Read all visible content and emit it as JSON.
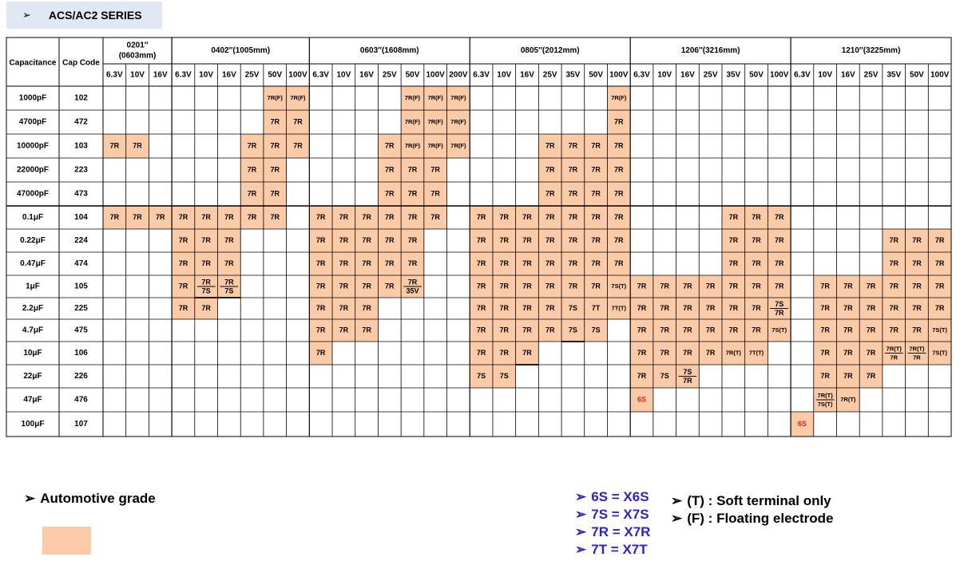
{
  "title": "ACS/AC2 SERIES",
  "title_arrow": "➢",
  "headers": {
    "capacitance": "Capacitance",
    "cap_code": "Cap Code",
    "sizes": [
      {
        "name": "0201″\n(0603mm)",
        "voltages": [
          "6.3V",
          "10V",
          "16V"
        ]
      },
      {
        "name": "0402″(1005mm)",
        "voltages": [
          "6.3V",
          "10V",
          "16V",
          "25V",
          "50V",
          "100V"
        ]
      },
      {
        "name": "0603″(1608mm)",
        "voltages": [
          "6.3V",
          "10V",
          "16V",
          "25V",
          "50V",
          "100V",
          "200V"
        ]
      },
      {
        "name": "0805″(2012mm)",
        "voltages": [
          "6.3V",
          "10V",
          "16V",
          "25V",
          "35V",
          "50V",
          "100V"
        ]
      },
      {
        "name": "1206″(3216mm)",
        "voltages": [
          "6.3V",
          "10V",
          "16V",
          "25V",
          "35V",
          "50V",
          "100V"
        ]
      },
      {
        "name": "1210″(3225mm)",
        "voltages": [
          "6.3V",
          "10V",
          "16V",
          "25V",
          "35V",
          "50V",
          "100V"
        ]
      }
    ]
  },
  "rows": [
    {
      "cap": "1000pF",
      "code": "102",
      "cells": [
        "",
        "",
        "",
        "",
        "",
        "",
        "",
        "7R(F)",
        "7R(F)",
        "",
        "",
        "",
        "",
        "7R(F)",
        "7R(F)",
        "7R(F)",
        "",
        "",
        "",
        "",
        "",
        "",
        "7R(F)",
        "",
        "",
        "",
        "",
        "",
        "",
        "",
        "",
        "",
        "",
        "",
        "",
        "",
        ""
      ]
    },
    {
      "cap": "4700pF",
      "code": "472",
      "cells": [
        "",
        "",
        "",
        "",
        "",
        "",
        "",
        "7R",
        "7R",
        "",
        "",
        "",
        "",
        "7R(F)",
        "7R(F)",
        "7R(F)",
        "",
        "",
        "",
        "",
        "",
        "",
        "7R",
        "",
        "",
        "",
        "",
        "",
        "",
        "",
        "",
        "",
        "",
        "",
        "",
        "",
        ""
      ]
    },
    {
      "cap": "10000pF",
      "code": "103",
      "cells": [
        "7R",
        "7R",
        "",
        "",
        "",
        "",
        "7R",
        "7R",
        "7R",
        "",
        "",
        "",
        "7R",
        "7R(F)",
        "7R(F)",
        "7R(F)",
        "",
        "",
        "",
        "7R",
        "7R",
        "7R",
        "7R",
        "",
        "",
        "",
        "",
        "",
        "",
        "",
        "",
        "",
        "",
        "",
        "",
        "",
        ""
      ]
    },
    {
      "cap": "22000pF",
      "code": "223",
      "cells": [
        "",
        "",
        "",
        "",
        "",
        "",
        "7R",
        "7R",
        "",
        "",
        "",
        "",
        "7R",
        "7R",
        "7R",
        "",
        "",
        "",
        "",
        "7R",
        "7R",
        "7R",
        "7R",
        "",
        "",
        "",
        "",
        "",
        "",
        "",
        "",
        "",
        "",
        "",
        "",
        "",
        ""
      ]
    },
    {
      "cap": "47000pF",
      "code": "473",
      "cells": [
        "",
        "",
        "",
        "",
        "",
        "",
        "7R",
        "7R",
        "",
        "",
        "",
        "",
        "7R",
        "7R",
        "7R",
        "",
        "",
        "",
        "",
        "7R",
        "7R",
        "7R",
        "7R",
        "",
        "",
        "",
        "",
        "",
        "",
        "",
        "",
        "",
        "",
        "",
        "",
        "",
        ""
      ]
    },
    {
      "cap": "0.1μF",
      "code": "104",
      "cells": [
        "7R",
        "7R",
        "7R",
        "7R",
        "7R",
        "7R",
        "7R",
        "7R",
        "",
        "7R",
        "7R",
        "7R",
        "7R",
        "7R",
        "7R",
        "",
        "7R",
        "7R",
        "7R",
        "7R",
        "7R",
        "7R",
        "7R",
        "",
        "",
        "",
        "",
        "7R",
        "7R",
        "7R",
        "",
        "",
        "",
        "",
        "",
        "",
        ""
      ]
    },
    {
      "cap": "0.22μF",
      "code": "224",
      "cells": [
        "",
        "",
        "",
        "7R",
        "7R",
        "7R",
        "",
        "",
        "",
        "7R",
        "7R",
        "7R",
        "7R",
        "7R",
        "",
        "",
        "7R",
        "7R",
        "7R",
        "7R",
        "7R",
        "7R",
        "7R",
        "",
        "",
        "",
        "",
        "7R",
        "7R",
        "7R",
        "",
        "",
        "",
        "",
        "7R",
        "7R",
        "7R"
      ]
    },
    {
      "cap": "0.47μF",
      "code": "474",
      "cells": [
        "",
        "",
        "",
        "7R",
        "7R",
        "7R",
        "",
        "",
        "",
        "7R",
        "7R",
        "7R",
        "7R",
        "7R",
        "",
        "",
        "7R",
        "7R",
        "7R",
        "7R",
        "7R",
        "7R",
        "7R",
        "",
        "",
        "",
        "",
        "7R",
        "7R",
        "7R",
        "",
        "",
        "",
        "",
        "7R",
        "7R",
        "7R"
      ]
    },
    {
      "cap": "1μF",
      "code": "105",
      "cells": [
        "",
        "",
        "",
        "7R",
        "7R/7S",
        "7R/7S",
        "",
        "",
        "",
        "7R",
        "7R",
        "7R",
        "7R",
        "7R/35V",
        "",
        "",
        "7R",
        "7R",
        "7R",
        "7R",
        "7R",
        "7R",
        "7S(T)",
        "7R",
        "7R",
        "7R",
        "7R",
        "7R",
        "7R",
        "7R",
        "",
        "7R",
        "7R",
        "7R",
        "7R",
        "7R",
        "7R"
      ]
    },
    {
      "cap": "2.2μF",
      "code": "225",
      "cells": [
        "",
        "",
        "",
        "7R",
        "7R",
        "",
        "",
        "",
        "",
        "7R",
        "7R",
        "7R",
        "",
        "",
        "",
        "",
        "7R",
        "7R",
        "7R",
        "7R",
        "7S",
        "7T",
        "7T(T)",
        "7R",
        "7R",
        "7R",
        "7R",
        "7R",
        "7R",
        "7S/7R",
        "",
        "7R",
        "7R",
        "7R",
        "7R",
        "7R",
        "7R"
      ]
    },
    {
      "cap": "4.7μF",
      "code": "475",
      "cells": [
        "",
        "",
        "",
        "",
        "",
        "",
        "",
        "",
        "",
        "7R",
        "7R",
        "7R",
        "",
        "",
        "",
        "",
        "7R",
        "7R",
        "7R",
        "7R",
        "7S",
        "7S",
        "",
        "7R",
        "7R",
        "7R",
        "7R",
        "7R",
        "7R",
        "7S(T)",
        "",
        "7R",
        "7R",
        "7R",
        "7R",
        "7R",
        "7S(T)"
      ]
    },
    {
      "cap": "10μF",
      "code": "106",
      "cells": [
        "",
        "",
        "",
        "",
        "",
        "",
        "",
        "",
        "",
        "7R",
        "",
        "",
        "",
        "",
        "",
        "",
        "7R",
        "7R",
        "7R",
        "",
        "",
        "",
        "",
        "7R",
        "7R",
        "7R",
        "7R",
        "7R(T)",
        "7T(T)",
        "",
        "",
        "7R",
        "7R",
        "7R",
        "7R(T)/7R",
        "7R(T)/7R",
        "7S(T)"
      ]
    },
    {
      "cap": "22μF",
      "code": "226",
      "cells": [
        "",
        "",
        "",
        "",
        "",
        "",
        "",
        "",
        "",
        "",
        "",
        "",
        "",
        "",
        "",
        "",
        "7S",
        "7S",
        "",
        "",
        "",
        "",
        "",
        "7R",
        "7S",
        "7S/7R",
        "",
        "",
        "",
        "",
        "",
        "7R",
        "7R",
        "7R",
        "",
        "",
        ""
      ]
    },
    {
      "cap": "47μF",
      "code": "476",
      "cells": [
        "",
        "",
        "",
        "",
        "",
        "",
        "",
        "",
        "",
        "",
        "",
        "",
        "",
        "",
        "",
        "",
        "",
        "",
        "",
        "",
        "",
        "",
        "",
        "6S",
        "",
        "",
        "",
        "",
        "",
        "",
        "",
        "7R(T)/7S(T)",
        "7R(T)",
        "",
        "",
        "",
        ""
      ]
    },
    {
      "cap": "100μF",
      "code": "107",
      "cells": [
        "",
        "",
        "",
        "",
        "",
        "",
        "",
        "",
        "",
        "",
        "",
        "",
        "",
        "",
        "",
        "",
        "",
        "",
        "",
        "",
        "",
        "",
        "",
        "",
        "",
        "",
        "",
        "",
        "",
        "",
        "6S",
        "",
        "",
        "",
        "",
        "",
        ""
      ]
    }
  ],
  "legend": {
    "arrow": "➢",
    "automotive": "Automotive grade",
    "automotive_color": "#fbcaa7",
    "codes": [
      "6S = X6S",
      "7S = X7S",
      "7R = X7R",
      "7T = X7T"
    ],
    "notes": [
      "(T) : Soft terminal only",
      "(F) : Floating electrode"
    ]
  },
  "colors": {
    "shaded": "#fbcaa7",
    "red_text": "#e02020",
    "legend_blue": "#2a24c6",
    "title_bg": "#dfe8f3"
  }
}
